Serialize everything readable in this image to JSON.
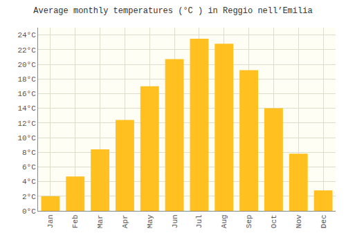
{
  "chart_data": {
    "type": "bar",
    "title": "Average monthly temperatures (°C ) in Reggio nell’Emilia",
    "categories": [
      "Jan",
      "Feb",
      "Mar",
      "Apr",
      "May",
      "Jun",
      "Jul",
      "Aug",
      "Sep",
      "Oct",
      "Nov",
      "Dec"
    ],
    "values": [
      2.0,
      4.7,
      8.4,
      12.4,
      17.0,
      20.7,
      23.5,
      22.8,
      19.2,
      14.0,
      7.8,
      2.8
    ],
    "color": "#FFC020",
    "ylim": [
      0,
      25
    ],
    "yticks": [
      {
        "value": 0,
        "label": "0°C"
      },
      {
        "value": 2,
        "label": "2°C"
      },
      {
        "value": 4,
        "label": "4°C"
      },
      {
        "value": 6,
        "label": "6°C"
      },
      {
        "value": 8,
        "label": "8°C"
      },
      {
        "value": 10,
        "label": "10°C"
      },
      {
        "value": 12,
        "label": "12°C"
      },
      {
        "value": 14,
        "label": "14°C"
      },
      {
        "value": 16,
        "label": "16°C"
      },
      {
        "value": 18,
        "label": "18°C"
      },
      {
        "value": 20,
        "label": "20°C"
      },
      {
        "value": 22,
        "label": "22°C"
      },
      {
        "value": 24,
        "label": "24°C"
      }
    ],
    "grid": true
  }
}
